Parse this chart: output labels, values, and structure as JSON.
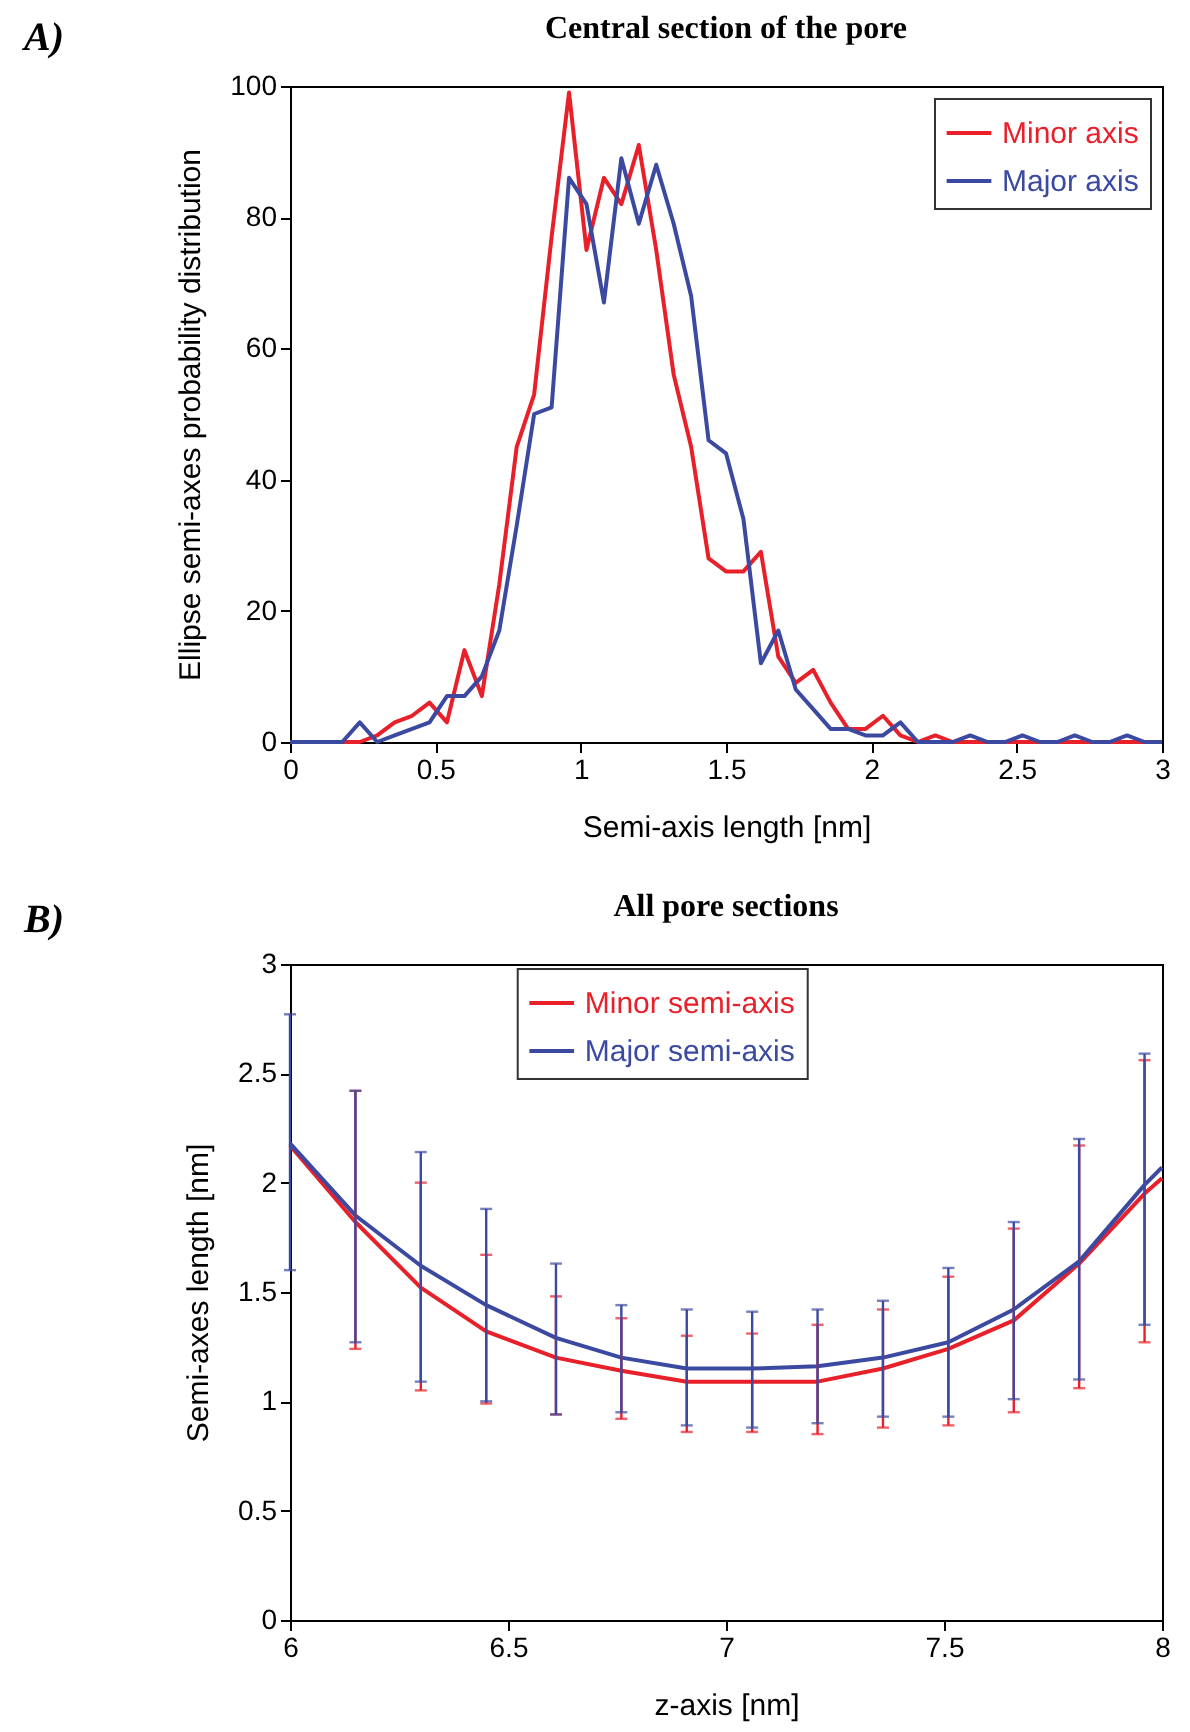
{
  "chart_data": [
    {
      "type": "line",
      "title": "Central section of the pore",
      "xlabel": "Semi-axis length [nm]",
      "ylabel": "Ellipse semi-axes probability distribution",
      "annotations": [
        "A)"
      ],
      "x": [
        0,
        0.06,
        0.12,
        0.18,
        0.24,
        0.3,
        0.36,
        0.42,
        0.48,
        0.54,
        0.6,
        0.66,
        0.72,
        0.78,
        0.84,
        0.9,
        0.96,
        1.02,
        1.08,
        1.14,
        1.2,
        1.26,
        1.32,
        1.38,
        1.44,
        1.5,
        1.56,
        1.62,
        1.68,
        1.74,
        1.8,
        1.86,
        1.92,
        1.98,
        2.04,
        2.1,
        2.16,
        2.22,
        2.28,
        2.34,
        2.4,
        2.46,
        2.52,
        2.58,
        2.64,
        2.7,
        2.76,
        2.82,
        2.88,
        2.94,
        3.0
      ],
      "series": [
        {
          "name": "Minor axis",
          "color": "#e8202a",
          "values": [
            null,
            null,
            0,
            0,
            0,
            1,
            3,
            4,
            6,
            3,
            14,
            7,
            24,
            45,
            53,
            77,
            99,
            75,
            86,
            82,
            91,
            75,
            56,
            45,
            28,
            26,
            26,
            29,
            13,
            9,
            11,
            6,
            2,
            2,
            4,
            1,
            0,
            1,
            0,
            0,
            0,
            0,
            0,
            0,
            0,
            0,
            0,
            0,
            0,
            0,
            0
          ]
        },
        {
          "name": "Major axis",
          "color": "#3b4aa0",
          "values": [
            0,
            0,
            0,
            0,
            3,
            0,
            1,
            2,
            3,
            7,
            7,
            10,
            17,
            33,
            50,
            51,
            86,
            82,
            67,
            89,
            79,
            88,
            79,
            68,
            46,
            44,
            34,
            12,
            17,
            8,
            5,
            2,
            2,
            1,
            1,
            3,
            0,
            0,
            0,
            1,
            0,
            0,
            1,
            0,
            0,
            1,
            0,
            0,
            1,
            0,
            0
          ]
        }
      ],
      "xlim": [
        0,
        3
      ],
      "xticks": [
        0,
        0.5,
        1,
        1.5,
        2,
        2.5,
        3
      ],
      "ylim": [
        0,
        100
      ],
      "yticks": [
        0,
        20,
        40,
        60,
        80,
        100
      ],
      "legend": "top right"
    },
    {
      "type": "line",
      "title": "All pore sections",
      "xlabel": "z-axis [nm]",
      "ylabel": "Semi-axes length [nm]",
      "annotations": [
        "B)"
      ],
      "x": [
        6,
        6.15,
        6.3,
        6.45,
        6.61,
        6.76,
        6.91,
        7.06,
        7.21,
        7.36,
        7.51,
        7.66,
        7.81,
        7.96,
        8
      ],
      "series": [
        {
          "name": "Minor semi-axis",
          "color": "#e8202a",
          "values": [
            2.17,
            1.82,
            1.52,
            1.32,
            1.2,
            1.14,
            1.09,
            1.09,
            1.09,
            1.15,
            1.24,
            1.37,
            1.63,
            1.95,
            2.02
          ],
          "errors": [
            null,
            [
              1.24,
              2.42
            ],
            [
              1.05,
              2.0
            ],
            [
              0.99,
              1.67
            ],
            [
              0.94,
              1.48
            ],
            [
              0.92,
              1.38
            ],
            [
              0.86,
              1.3
            ],
            [
              0.86,
              1.31
            ],
            [
              0.85,
              1.35
            ],
            [
              0.88,
              1.42
            ],
            [
              0.89,
              1.57
            ],
            [
              0.95,
              1.79
            ],
            [
              1.06,
              2.17
            ],
            [
              1.27,
              2.56
            ],
            null
          ]
        },
        {
          "name": "Major semi-axis",
          "color": "#3b4aa0",
          "values": [
            2.18,
            1.85,
            1.62,
            1.44,
            1.29,
            1.2,
            1.15,
            1.15,
            1.16,
            1.2,
            1.27,
            1.42,
            1.64,
            1.99,
            2.07
          ],
          "errors": [
            [
              1.6,
              2.77
            ],
            [
              1.27,
              2.42
            ],
            [
              1.09,
              2.14
            ],
            [
              1.0,
              1.88
            ],
            [
              0.94,
              1.63
            ],
            [
              0.95,
              1.44
            ],
            [
              0.89,
              1.42
            ],
            [
              0.88,
              1.41
            ],
            [
              0.9,
              1.42
            ],
            [
              0.93,
              1.46
            ],
            [
              0.93,
              1.61
            ],
            [
              1.01,
              1.82
            ],
            [
              1.1,
              2.2
            ],
            [
              1.35,
              2.59
            ],
            null
          ]
        }
      ],
      "xlim": [
        6,
        8
      ],
      "xticks": [
        6,
        6.5,
        7,
        7.5,
        8
      ],
      "ylim": [
        0,
        3
      ],
      "yticks": [
        0,
        0.5,
        1,
        1.5,
        2,
        2.5,
        3
      ],
      "legend": "top"
    }
  ]
}
